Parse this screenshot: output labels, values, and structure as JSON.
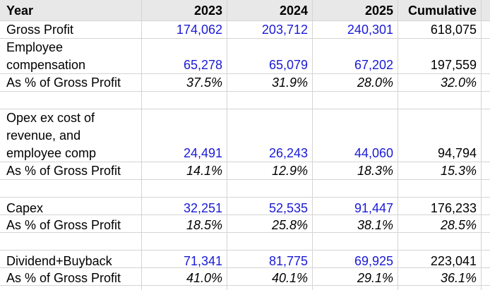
{
  "header": {
    "label": "Year",
    "y2023": "2023",
    "y2024": "2024",
    "y2025": "2025",
    "cumulative": "Cumulative"
  },
  "gross_profit": {
    "label": "Gross Profit",
    "y2023": "174,062",
    "y2024": "203,712",
    "y2025": "240,301",
    "cumulative": "618,075"
  },
  "employee_comp": {
    "label_lines": [
      "Employee",
      "compensation"
    ],
    "y2023": "65,278",
    "y2024": "65,079",
    "y2025": "67,202",
    "cumulative": "197,559",
    "pct_label": "As % of Gross Profit",
    "pct_2023": "37.5%",
    "pct_2024": "31.9%",
    "pct_2025": "28.0%",
    "pct_cumulative": "32.0%"
  },
  "opex": {
    "label_lines": [
      "Opex ex cost of",
      "revenue, and",
      "employee comp"
    ],
    "y2023": "24,491",
    "y2024": "26,243",
    "y2025": "44,060",
    "cumulative": "94,794",
    "pct_label": "As % of Gross Profit",
    "pct_2023": "14.1%",
    "pct_2024": "12.9%",
    "pct_2025": "18.3%",
    "pct_cumulative": "15.3%"
  },
  "capex": {
    "label": "Capex",
    "y2023": "32,251",
    "y2024": "52,535",
    "y2025": "91,447",
    "cumulative": "176,233",
    "pct_label": "As % of Gross Profit",
    "pct_2023": "18.5%",
    "pct_2024": "25.8%",
    "pct_2025": "38.1%",
    "pct_cumulative": "28.5%"
  },
  "dividend_buyback": {
    "label": "Dividend+Buyback",
    "y2023": "71,341",
    "y2024": "81,775",
    "y2025": "69,925",
    "cumulative": "223,041",
    "pct_label": "As % of Gross Profit",
    "pct_2023": "41.0%",
    "pct_2024": "40.1%",
    "pct_2025": "29.1%",
    "pct_cumulative": "36.1%"
  },
  "colors": {
    "input_blue": "#1a1ad6",
    "header_bg": "#e8e8e8",
    "gridline": "#d4d4d4"
  }
}
